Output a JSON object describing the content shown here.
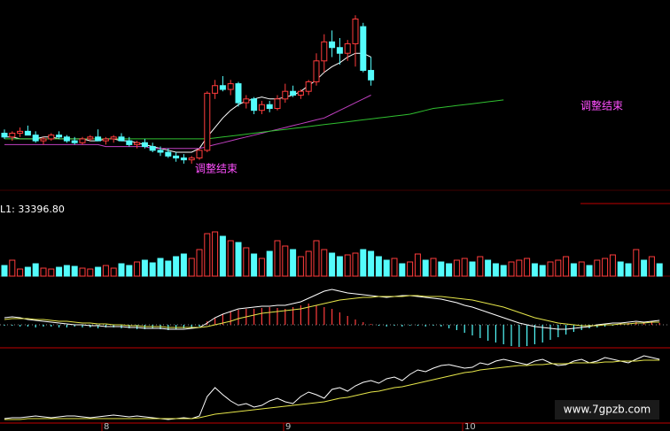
{
  "chart_data": [
    {
      "type": "candlestick",
      "up_color": "#ff3c3c",
      "down_color": "#54fcfc",
      "ylim": [
        0,
        100
      ],
      "annotations": [
        "调整结束",
        "调整结束"
      ],
      "ohlc": [
        [
          30,
          32,
          27,
          28
        ],
        [
          28,
          31,
          26,
          30
        ],
        [
          30,
          33,
          28,
          31
        ],
        [
          31,
          34,
          29,
          29
        ],
        [
          29,
          31,
          25,
          26
        ],
        [
          26,
          28,
          24,
          27
        ],
        [
          27,
          30,
          26,
          29
        ],
        [
          29,
          31,
          27,
          28
        ],
        [
          28,
          29,
          25,
          26
        ],
        [
          26,
          28,
          24,
          25
        ],
        [
          25,
          28,
          24,
          27
        ],
        [
          27,
          29,
          26,
          28
        ],
        [
          28,
          32,
          27,
          26
        ],
        [
          26,
          28,
          24,
          27
        ],
        [
          27,
          29,
          25,
          28
        ],
        [
          28,
          30,
          26,
          26
        ],
        [
          26,
          28,
          23,
          24
        ],
        [
          24,
          26,
          22,
          25
        ],
        [
          25,
          27,
          22,
          23
        ],
        [
          23,
          25,
          20,
          21
        ],
        [
          21,
          23,
          18,
          20
        ],
        [
          20,
          22,
          17,
          18
        ],
        [
          18,
          20,
          15,
          17
        ],
        [
          17,
          19,
          14,
          16
        ],
        [
          16,
          18,
          14,
          17
        ],
        [
          17,
          22,
          16,
          21
        ],
        [
          21,
          52,
          20,
          51
        ],
        [
          51,
          58,
          48,
          55
        ],
        [
          55,
          60,
          52,
          53
        ],
        [
          53,
          58,
          50,
          56
        ],
        [
          56,
          57,
          44,
          46
        ],
        [
          46,
          50,
          43,
          48
        ],
        [
          48,
          49,
          40,
          42
        ],
        [
          42,
          47,
          40,
          45
        ],
        [
          45,
          47,
          41,
          43
        ],
        [
          43,
          50,
          42,
          48
        ],
        [
          48,
          56,
          46,
          52
        ],
        [
          52,
          55,
          49,
          50
        ],
        [
          50,
          53,
          48,
          52
        ],
        [
          52,
          58,
          50,
          57
        ],
        [
          57,
          72,
          55,
          68
        ],
        [
          68,
          82,
          62,
          78
        ],
        [
          78,
          84,
          70,
          75
        ],
        [
          75,
          80,
          66,
          72
        ],
        [
          72,
          79,
          68,
          77
        ],
        [
          77,
          92,
          65,
          90
        ],
        [
          86,
          88,
          62,
          63
        ],
        [
          63,
          70,
          55,
          58
        ]
      ],
      "series": [
        {
          "color": "#ffffff",
          "values": [
            28,
            28,
            27,
            27,
            27,
            28,
            28,
            27,
            27,
            27,
            27,
            26,
            26,
            27,
            27,
            26,
            26,
            25,
            24,
            23,
            22,
            21,
            20,
            20,
            20,
            22,
            28,
            33,
            38,
            42,
            45,
            47,
            48,
            49,
            48,
            48,
            49,
            50,
            52,
            55,
            58,
            62,
            65,
            67,
            70,
            72,
            72,
            70
          ]
        },
        {
          "color": "#c040c0",
          "values": [
            24,
            24,
            24,
            24,
            24,
            24,
            24,
            24,
            24,
            24,
            24,
            24,
            24,
            23,
            23,
            23,
            23,
            23,
            23,
            22,
            22,
            22,
            22,
            22,
            22,
            22,
            23,
            24,
            25,
            26,
            27,
            28,
            29,
            30,
            31,
            32,
            33,
            34,
            35,
            36,
            37,
            38,
            40,
            42,
            44,
            46,
            48,
            50
          ]
        },
        {
          "color": "#30c030",
          "values": [
            27,
            27,
            27,
            27,
            27,
            27,
            27,
            27,
            27,
            27,
            27,
            27,
            27,
            27,
            27,
            27,
            27,
            27,
            27,
            27,
            27,
            27,
            27,
            27,
            27,
            27,
            27,
            27.5,
            28,
            28.5,
            29,
            29.5,
            30,
            30.5,
            31,
            31.5,
            32,
            32.5,
            33,
            33.5,
            34,
            34.5,
            35,
            35.5,
            36,
            36.5,
            37,
            37.5,
            38,
            38.5,
            39,
            39.5,
            40,
            41,
            42,
            43,
            43.5,
            44,
            44.5,
            45,
            45.5,
            46,
            46.5,
            47,
            47.5
          ]
        }
      ]
    },
    {
      "type": "volume",
      "label": "L1: 33396.80",
      "ylim": [
        0,
        60
      ],
      "values": [
        12,
        18,
        8,
        10,
        14,
        9,
        8,
        10,
        12,
        11,
        9,
        8,
        10,
        12,
        9,
        14,
        12,
        16,
        18,
        15,
        20,
        17,
        22,
        25,
        20,
        30,
        48,
        50,
        45,
        40,
        38,
        32,
        25,
        20,
        28,
        40,
        34,
        30,
        22,
        28,
        40,
        30,
        26,
        22,
        24,
        26,
        30,
        28,
        22,
        18,
        20,
        14,
        16,
        25,
        18,
        20,
        16,
        14,
        18,
        20,
        16,
        22,
        18,
        14,
        12,
        16,
        18,
        20,
        14,
        12,
        16,
        18,
        22,
        14,
        16,
        12,
        18,
        20,
        24,
        16,
        14,
        30,
        18,
        22,
        14
      ]
    },
    {
      "type": "macd",
      "ylim": [
        -40,
        45
      ],
      "values": [
        -1,
        -1,
        -2,
        -2,
        -3,
        -2,
        -2,
        -3,
        -3,
        -2,
        -3,
        -3,
        -4,
        -3,
        -3,
        -4,
        -4,
        -5,
        -5,
        -4,
        -5,
        -6,
        -5,
        -4,
        -3,
        -2,
        4,
        8,
        12,
        15,
        17,
        18,
        18,
        19,
        20,
        19,
        18,
        20,
        22,
        24,
        22,
        20,
        18,
        14,
        10,
        6,
        3,
        1,
        -1,
        -2,
        -1,
        -2,
        -1,
        -1,
        -2,
        -1,
        -2,
        -4,
        -6,
        -9,
        -12,
        -15,
        -18,
        -20,
        -22,
        -24,
        -25,
        -24,
        -22,
        -20,
        -17,
        -14,
        -11,
        -8,
        -6,
        -4,
        -3,
        -2,
        -1,
        1,
        2,
        3,
        2,
        3,
        2
      ],
      "series": [
        {
          "color": "#ffffff",
          "values": [
            8,
            9,
            8,
            6,
            5,
            4,
            3,
            2,
            1,
            0,
            0,
            -1,
            -1,
            -2,
            -2,
            -2,
            -3,
            -3,
            -4,
            -4,
            -4,
            -5,
            -5,
            -5,
            -4,
            -3,
            2,
            8,
            12,
            15,
            18,
            19,
            20,
            21,
            21,
            22,
            22,
            24,
            26,
            30,
            34,
            38,
            40,
            38,
            36,
            35,
            34,
            33,
            32,
            31,
            32,
            33,
            33,
            32,
            31,
            30,
            29,
            27,
            25,
            22,
            20,
            17,
            14,
            11,
            8,
            5,
            2,
            0,
            -2,
            -3,
            -4,
            -5,
            -5,
            -4,
            -3,
            -2,
            0,
            1,
            2,
            2,
            3,
            4,
            3,
            4,
            5
          ]
        },
        {
          "color": "#e6e64a",
          "values": [
            6,
            7,
            7,
            7,
            6,
            6,
            5,
            4,
            4,
            3,
            2,
            2,
            1,
            1,
            0,
            0,
            -1,
            -1,
            -2,
            -2,
            -2,
            -3,
            -3,
            -3,
            -3,
            -3,
            -2,
            0,
            2,
            4,
            7,
            9,
            11,
            13,
            14,
            15,
            16,
            17,
            18,
            20,
            22,
            24,
            26,
            28,
            29,
            30,
            31,
            31,
            32,
            32,
            32,
            32,
            33,
            33,
            32,
            32,
            32,
            31,
            30,
            29,
            28,
            26,
            24,
            22,
            20,
            17,
            14,
            11,
            8,
            6,
            4,
            2,
            1,
            0,
            -1,
            -1,
            -1,
            0,
            0,
            1,
            1,
            2,
            2,
            3,
            3
          ]
        }
      ]
    },
    {
      "type": "line",
      "ylim": [
        0,
        90
      ],
      "axis_labels": [
        "8",
        "9",
        "10"
      ],
      "series": [
        {
          "color": "#ffffff",
          "values": [
            5,
            6,
            6,
            7,
            8,
            7,
            6,
            7,
            8,
            8,
            7,
            6,
            7,
            8,
            9,
            8,
            7,
            8,
            7,
            6,
            5,
            4,
            5,
            6,
            5,
            8,
            30,
            40,
            32,
            25,
            20,
            22,
            18,
            20,
            25,
            28,
            24,
            22,
            30,
            35,
            32,
            28,
            38,
            40,
            36,
            42,
            46,
            48,
            45,
            50,
            52,
            48,
            55,
            60,
            58,
            62,
            65,
            66,
            64,
            62,
            63,
            68,
            66,
            70,
            72,
            70,
            68,
            66,
            70,
            72,
            68,
            65,
            66,
            70,
            72,
            68,
            70,
            74,
            72,
            70,
            68,
            72,
            76,
            74,
            72
          ]
        },
        {
          "color": "#e6e64a",
          "values": [
            4,
            4,
            4,
            5,
            5,
            5,
            5,
            5,
            5,
            5,
            5,
            5,
            5,
            5,
            5,
            5,
            5,
            5,
            5,
            5,
            5,
            5,
            5,
            5,
            5,
            6,
            8,
            10,
            11,
            12,
            13,
            14,
            15,
            16,
            17,
            18,
            19,
            20,
            21,
            22,
            23,
            24,
            26,
            28,
            29,
            31,
            33,
            35,
            36,
            38,
            40,
            41,
            43,
            45,
            47,
            49,
            51,
            53,
            55,
            57,
            58,
            60,
            61,
            62,
            63,
            64,
            65,
            65,
            66,
            66,
            67,
            67,
            67,
            68,
            68,
            68,
            68,
            69,
            69,
            70,
            70,
            70,
            71,
            71,
            71
          ]
        }
      ]
    }
  ],
  "watermark": "www.7gpzb.com"
}
